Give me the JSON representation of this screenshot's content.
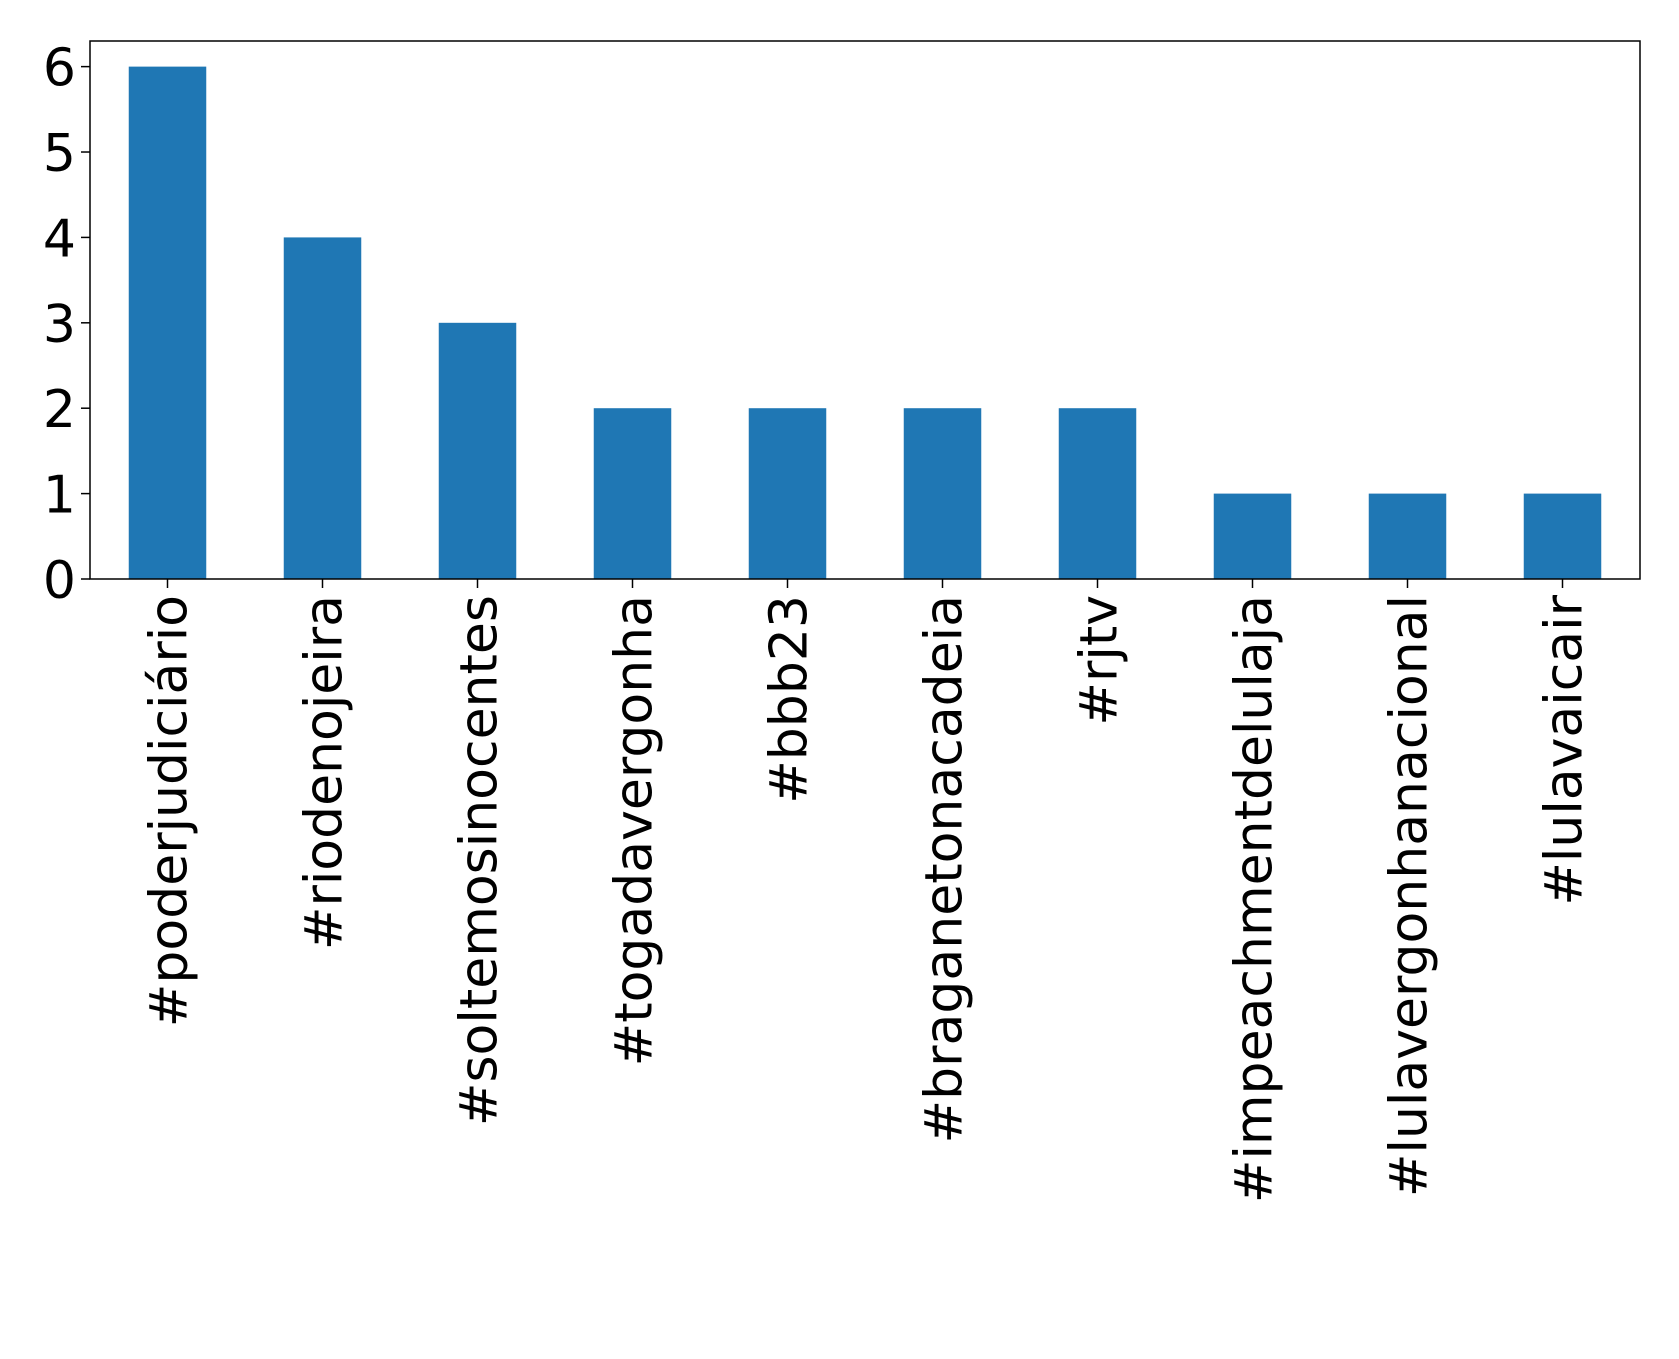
{
  "chart_data": {
    "type": "bar",
    "categories": [
      "#poderjudiciário",
      "#riodenojeira",
      "#soltemosinocentes",
      "#togadavergonha",
      "#bbb23",
      "#braganetonacadeia",
      "#rjtv",
      "#impeachmentdelulaja",
      "#lulavergonhanacional",
      "#lulavaicair"
    ],
    "values": [
      6,
      4,
      3,
      2,
      2,
      2,
      2,
      1,
      1,
      1
    ],
    "color": "#1f77b4",
    "ylim": [
      0,
      6.3
    ],
    "yticks": [
      0,
      1,
      2,
      3,
      4,
      5,
      6
    ],
    "grid": false
  }
}
